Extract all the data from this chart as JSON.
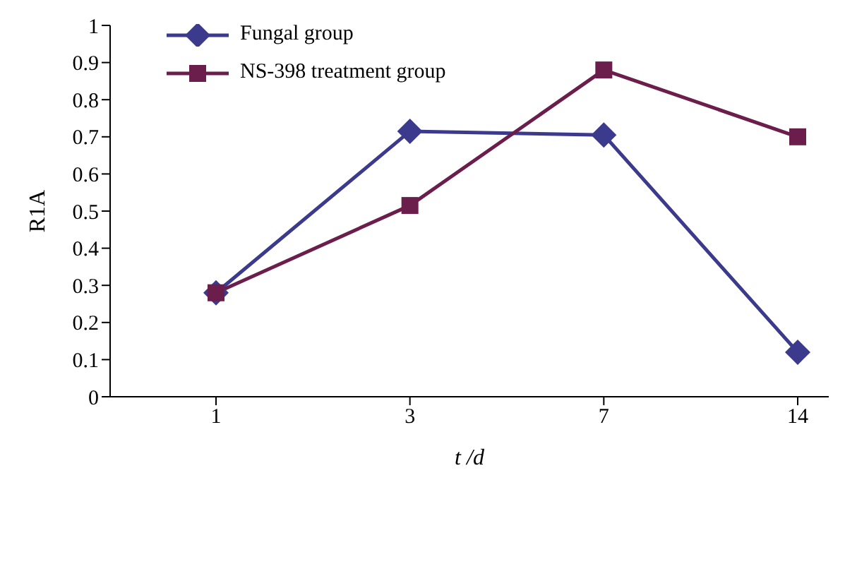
{
  "chart_data": {
    "type": "line",
    "xlabel": "t /d",
    "ylabel": "R1A",
    "categories": [
      "1",
      "3",
      "7",
      "14"
    ],
    "series": [
      {
        "name": "Fungal group",
        "color": "#3b3a8c",
        "marker": "diamond",
        "values": [
          0.28,
          0.715,
          0.705,
          0.12
        ]
      },
      {
        "name": "NS-398 treatment group",
        "color": "#6b1e4c",
        "marker": "square",
        "values": [
          0.28,
          0.515,
          0.88,
          0.7
        ]
      }
    ],
    "ylim": [
      0,
      1
    ],
    "yticks": [
      0,
      0.1,
      0.2,
      0.3,
      0.4,
      0.5,
      0.6,
      0.7,
      0.8,
      0.9,
      1
    ],
    "grid": false,
    "legend": "top left",
    "line_style": "solid"
  }
}
